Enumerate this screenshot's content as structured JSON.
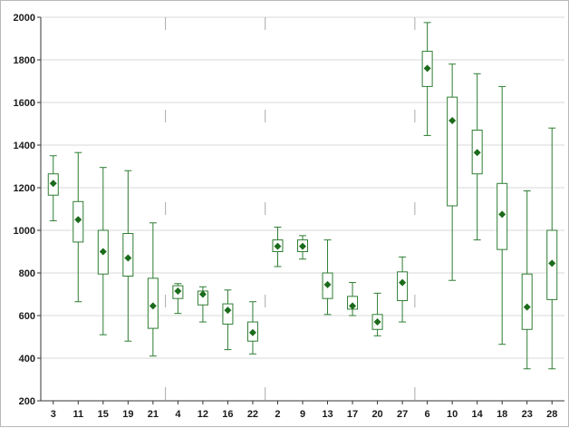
{
  "chart_data": {
    "type": "box",
    "title": "",
    "xlabel": "",
    "ylabel": "",
    "ylim": [
      200,
      2000
    ],
    "y_ticks": [
      "200",
      "400",
      "600",
      "800",
      "1000",
      "1200",
      "1400",
      "1600",
      "1800",
      "2000"
    ],
    "grid": "horizontal",
    "legend": "none",
    "group_separator": "dashed vertical lines",
    "colors": {
      "box": "#2e7d32",
      "marker": "#1b6b1b",
      "grid": "#d9d9d9",
      "separator": "#aaaaaa"
    },
    "groups": [
      {
        "categories": [
          "3",
          "11",
          "15",
          "19",
          "21"
        ]
      },
      {
        "categories": [
          "4",
          "12",
          "16",
          "22"
        ]
      },
      {
        "categories": [
          "2",
          "9",
          "13",
          "17",
          "20",
          "27"
        ]
      },
      {
        "categories": [
          "6",
          "10",
          "14",
          "18",
          "23",
          "28"
        ]
      }
    ],
    "categories": [
      "3",
      "11",
      "15",
      "19",
      "21",
      "4",
      "12",
      "16",
      "22",
      "2",
      "9",
      "13",
      "17",
      "20",
      "27",
      "6",
      "10",
      "14",
      "18",
      "23",
      "28"
    ],
    "boxes": [
      {
        "label": "3",
        "min": 1045,
        "q1": 1165,
        "median": 1220,
        "q3": 1265,
        "max": 1350
      },
      {
        "label": "11",
        "min": 665,
        "q1": 945,
        "median": 1050,
        "q3": 1135,
        "max": 1365
      },
      {
        "label": "15",
        "min": 510,
        "q1": 795,
        "median": 900,
        "q3": 1000,
        "max": 1295
      },
      {
        "label": "19",
        "min": 480,
        "q1": 785,
        "median": 870,
        "q3": 985,
        "max": 1280
      },
      {
        "label": "21",
        "min": 410,
        "q1": 540,
        "median": 645,
        "q3": 775,
        "max": 1035
      },
      {
        "label": "4",
        "min": 610,
        "q1": 680,
        "median": 715,
        "q3": 740,
        "max": 750
      },
      {
        "label": "12",
        "min": 570,
        "q1": 650,
        "median": 700,
        "q3": 715,
        "max": 735
      },
      {
        "label": "16",
        "min": 440,
        "q1": 560,
        "median": 625,
        "q3": 655,
        "max": 720
      },
      {
        "label": "22",
        "min": 420,
        "q1": 480,
        "median": 520,
        "q3": 570,
        "max": 665
      },
      {
        "label": "2",
        "min": 830,
        "q1": 900,
        "median": 925,
        "q3": 955,
        "max": 1015
      },
      {
        "label": "9",
        "min": 865,
        "q1": 900,
        "median": 925,
        "q3": 955,
        "max": 975
      },
      {
        "label": "13",
        "min": 605,
        "q1": 680,
        "median": 745,
        "q3": 800,
        "max": 955
      },
      {
        "label": "17",
        "min": 600,
        "q1": 630,
        "median": 645,
        "q3": 690,
        "max": 755
      },
      {
        "label": "20",
        "min": 505,
        "q1": 535,
        "median": 570,
        "q3": 605,
        "max": 705
      },
      {
        "label": "27",
        "min": 570,
        "q1": 670,
        "median": 755,
        "q3": 805,
        "max": 875
      },
      {
        "label": "6",
        "min": 1445,
        "q1": 1675,
        "median": 1760,
        "q3": 1840,
        "max": 1975
      },
      {
        "label": "10",
        "min": 765,
        "q1": 1115,
        "median": 1515,
        "q3": 1625,
        "max": 1780
      },
      {
        "label": "14",
        "min": 955,
        "q1": 1265,
        "median": 1365,
        "q3": 1470,
        "max": 1735
      },
      {
        "label": "18",
        "min": 465,
        "q1": 910,
        "median": 1075,
        "q3": 1220,
        "max": 1675
      },
      {
        "label": "23",
        "min": 350,
        "q1": 535,
        "median": 640,
        "q3": 795,
        "max": 1185
      },
      {
        "label": "28",
        "min": 350,
        "q1": 675,
        "median": 845,
        "q3": 1000,
        "max": 1480
      }
    ]
  }
}
